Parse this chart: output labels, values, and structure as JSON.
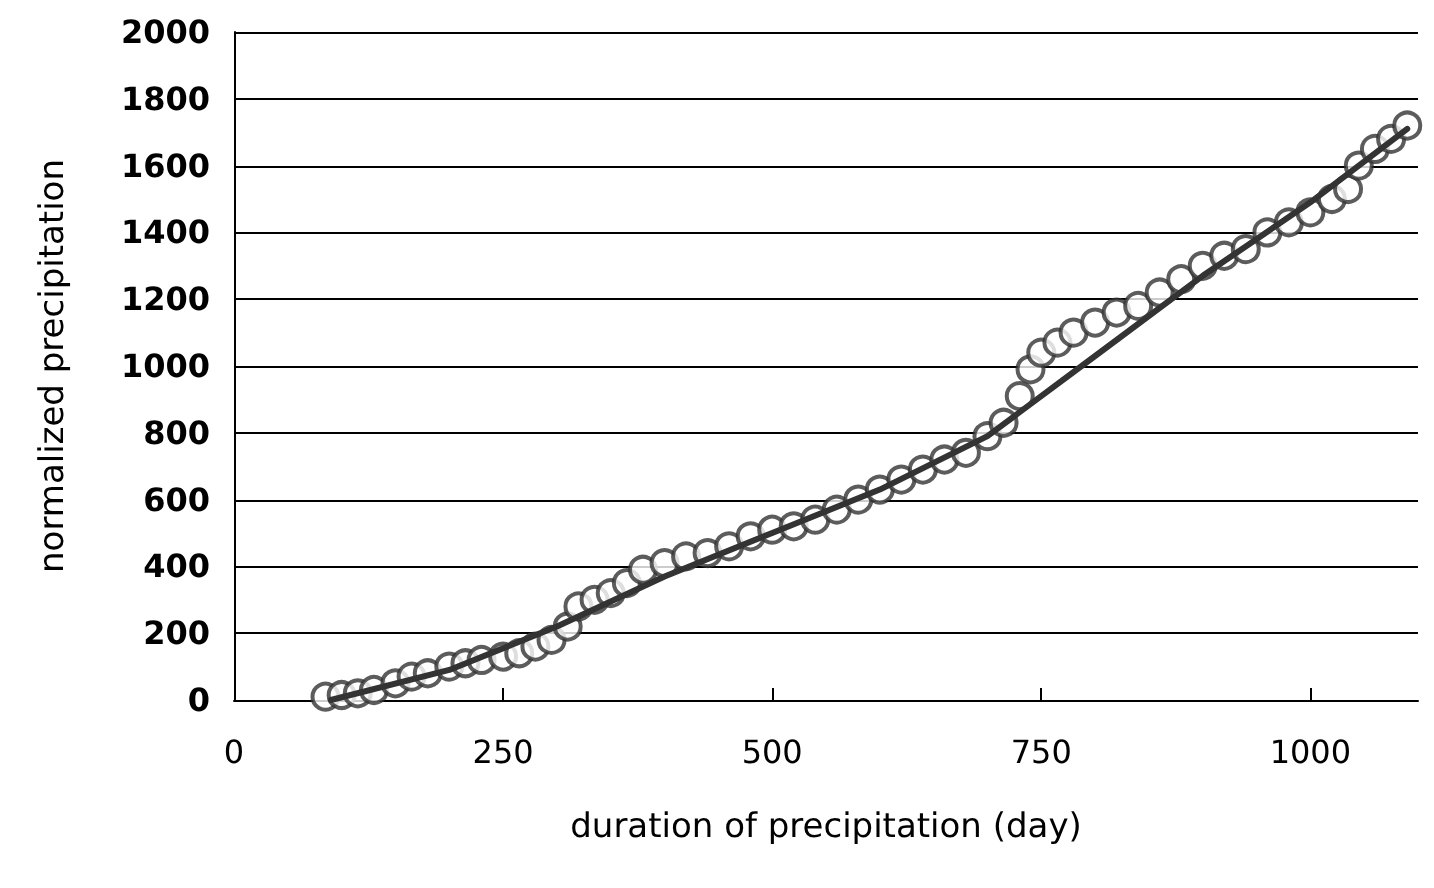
{
  "chart_data": {
    "type": "scatter",
    "xlabel": "duration of precipitation (day)",
    "ylabel": "normalized precipitation",
    "xlim": [
      0,
      1100
    ],
    "xticks": [
      0,
      250,
      500,
      750,
      1000
    ],
    "ylim": [
      0,
      2000
    ],
    "yticks": [
      0,
      200,
      400,
      600,
      800,
      1000,
      1200,
      1400,
      1600,
      1800,
      2000
    ],
    "grid": "y",
    "series": [
      {
        "marker": "circle",
        "color": "#333333",
        "x": [
          85,
          100,
          115,
          130,
          150,
          165,
          180,
          200,
          215,
          230,
          250,
          265,
          280,
          295,
          310,
          320,
          335,
          350,
          365,
          380,
          400,
          420,
          440,
          460,
          480,
          500,
          520,
          540,
          560,
          580,
          600,
          620,
          640,
          660,
          680,
          700,
          715,
          730,
          740,
          750,
          765,
          780,
          800,
          820,
          840,
          860,
          880,
          900,
          920,
          940,
          960,
          980,
          1000,
          1020,
          1035,
          1045,
          1060,
          1075,
          1090
        ],
        "values": [
          10,
          15,
          20,
          30,
          50,
          70,
          80,
          100,
          110,
          120,
          130,
          140,
          160,
          180,
          220,
          280,
          300,
          320,
          350,
          390,
          410,
          430,
          440,
          460,
          490,
          510,
          520,
          540,
          570,
          600,
          630,
          660,
          690,
          720,
          740,
          790,
          830,
          910,
          990,
          1040,
          1070,
          1100,
          1130,
          1160,
          1180,
          1220,
          1260,
          1300,
          1330,
          1350,
          1400,
          1430,
          1460,
          1500,
          1530,
          1600,
          1650,
          1680,
          1720
        ]
      },
      {
        "type": "line",
        "marker": "none",
        "line_style": "solid",
        "color": "#333333",
        "x": [
          90,
          200,
          300,
          400,
          500,
          600,
          700,
          800,
          900,
          1000,
          1090
        ],
        "values": [
          0,
          90,
          220,
          370,
          500,
          630,
          790,
          1030,
          1270,
          1490,
          1710
        ]
      }
    ]
  }
}
